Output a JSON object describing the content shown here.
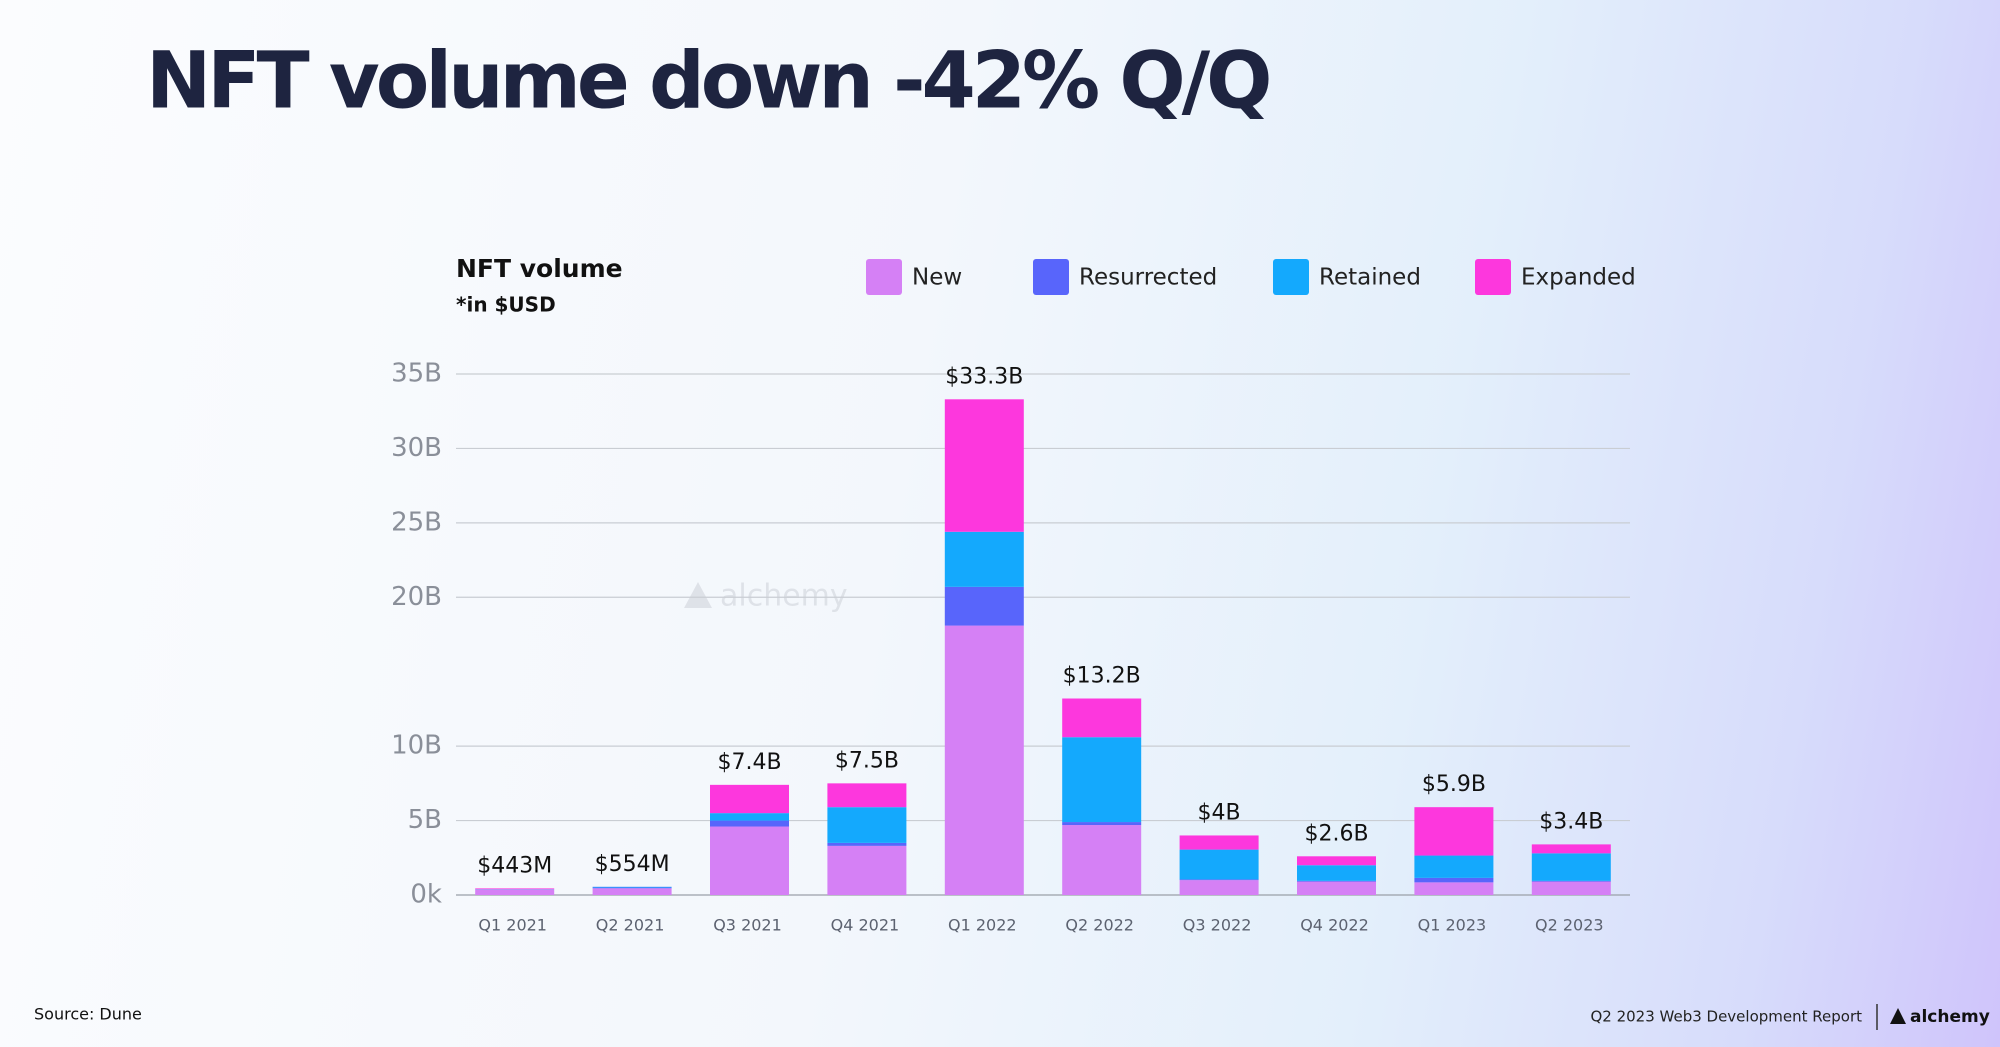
{
  "title": "NFT volume down -42% Q/Q",
  "chart_data": {
    "type": "stacked-bar",
    "title": "NFT volume",
    "subtitle": "*in $USD",
    "watermark": "alchemy",
    "categories": [
      "Q1 2021",
      "Q2 2021",
      "Q3 2021",
      "Q4 2021",
      "Q1 2022",
      "Q2 2022",
      "Q3 2022",
      "Q4 2022",
      "Q1 2023",
      "Q2 2023"
    ],
    "series": [
      {
        "name": "New",
        "color": "#d580f5",
        "values": [
          0.38,
          0.45,
          4.6,
          3.3,
          18.1,
          4.7,
          1.0,
          0.9,
          0.85,
          0.9
        ]
      },
      {
        "name": "Resurrected",
        "color": "#5865fb",
        "values": [
          0.01,
          0.05,
          0.4,
          0.2,
          2.6,
          0.2,
          0.05,
          0.05,
          0.3,
          0.05
        ]
      },
      {
        "name": "Retained",
        "color": "#14a9fd",
        "values": [
          0.01,
          0.05,
          0.5,
          2.4,
          3.7,
          5.7,
          2.0,
          1.05,
          1.5,
          1.85
        ]
      },
      {
        "name": "Expanded",
        "color": "#fd37dd",
        "values": [
          0.043,
          0.004,
          1.9,
          1.6,
          8.9,
          2.6,
          0.95,
          0.6,
          3.25,
          0.6
        ]
      }
    ],
    "totals": {
      "values": [
        0.443,
        0.554,
        7.4,
        7.5,
        33.3,
        13.2,
        4,
        2.6,
        5.9,
        3.4
      ],
      "value_labels": [
        "$443M",
        "$554M",
        "$7.4B",
        "$7.5B",
        "$33.3B",
        "$13.2B",
        "$4B",
        "$2.6B",
        "$5.9B",
        "$3.4B"
      ]
    },
    "ylim": [
      0,
      35
    ],
    "yticks": [
      {
        "value": 0,
        "label": "0k"
      },
      {
        "value": 5,
        "label": "5B"
      },
      {
        "value": 10,
        "label": "10B"
      },
      {
        "value": 20,
        "label": "20B"
      },
      {
        "value": 25,
        "label": "25B"
      },
      {
        "value": 30,
        "label": "30B"
      },
      {
        "value": 35,
        "label": "35B"
      }
    ],
    "grid": true
  },
  "footer": {
    "source": "Source: Dune",
    "report": "Q2 2023 Web3 Development Report",
    "brand": "alchemy"
  }
}
